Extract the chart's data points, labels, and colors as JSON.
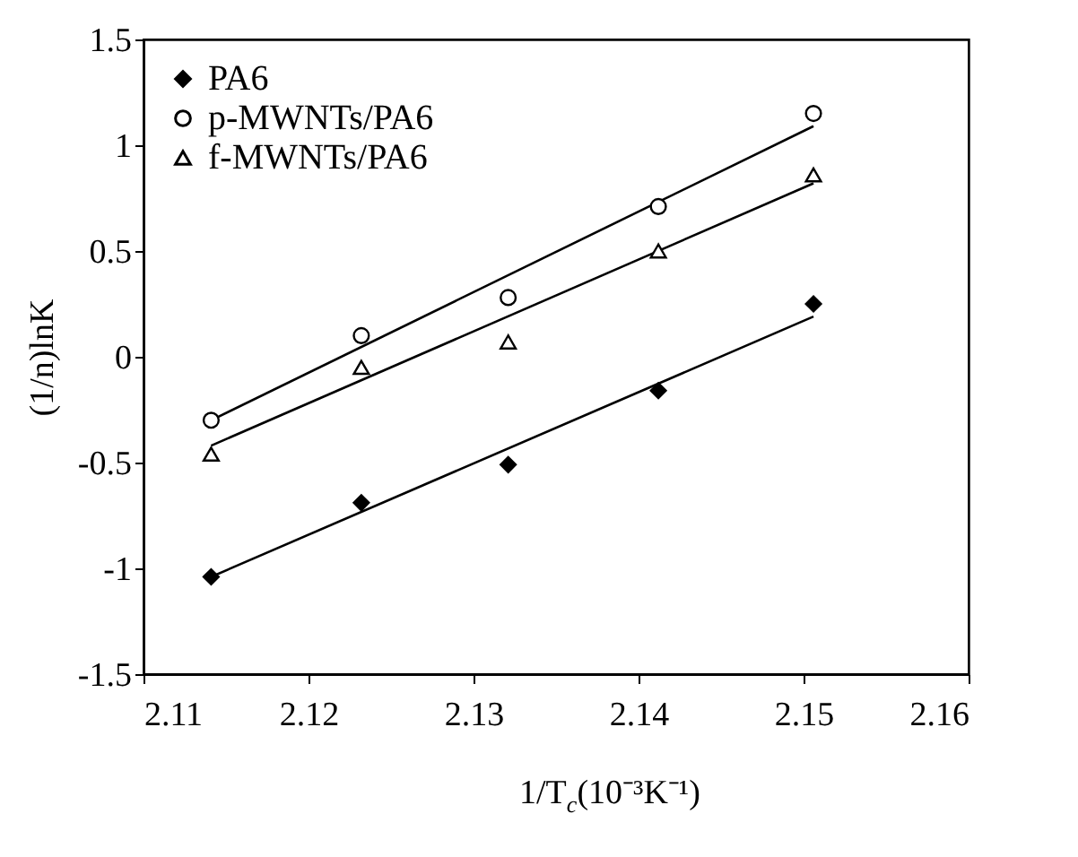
{
  "chart_data": {
    "type": "scatter",
    "xlabel": "1/T$_{c}$(10⁻³K⁻¹)",
    "ylabel": "(1/n)lnK",
    "xlim": [
      2.11,
      2.16
    ],
    "xticks": [
      2.11,
      2.12,
      2.13,
      2.14,
      2.15,
      2.16
    ],
    "ylim": [
      -1.5,
      1.5
    ],
    "yticks": [
      -1.5,
      -1,
      -0.5,
      0,
      0.5,
      1,
      1.5
    ],
    "grid": false,
    "legend": "top left",
    "series": [
      {
        "name": "PA6",
        "marker": "diamond",
        "color": "#000000",
        "x": [
          2.1141,
          2.1232,
          2.1321,
          2.1412,
          2.1506
        ],
        "values": [
          -1.04,
          -0.69,
          -0.51,
          -0.16,
          0.25
        ]
      },
      {
        "name": "p-MWNTs/PA6",
        "marker": "circle",
        "color": "#000000",
        "x": [
          2.1141,
          2.1232,
          2.1321,
          2.1412,
          2.1506
        ],
        "values": [
          -0.3,
          0.1,
          0.28,
          0.71,
          1.15
        ]
      },
      {
        "name": "f-MWNTs/PA6",
        "marker": "triangle",
        "color": "#000000",
        "x": [
          2.1141,
          2.1232,
          2.1321,
          2.1412,
          2.1506
        ],
        "values": [
          -0.46,
          -0.05,
          0.07,
          0.5,
          0.86
        ]
      },
      {
        "type": "line",
        "color": "#000000",
        "x": [
          2.1141,
          2.1506
        ],
        "values": [
          -1.04,
          0.19
        ]
      },
      {
        "type": "line",
        "color": "#000000",
        "x": [
          2.1141,
          2.1506
        ],
        "values": [
          -0.3,
          1.09
        ]
      },
      {
        "type": "line",
        "color": "#000000",
        "x": [
          2.1141,
          2.1506
        ],
        "values": [
          -0.42,
          0.82
        ]
      }
    ]
  }
}
